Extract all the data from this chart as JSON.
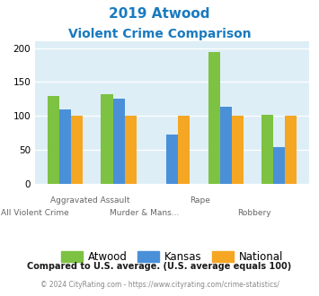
{
  "title_line1": "2019 Atwood",
  "title_line2": "Violent Crime Comparison",
  "title_color": "#1a7abf",
  "categories": [
    "All Violent Crime",
    "Aggravated Assault",
    "Murder & Mans...",
    "Rape",
    "Robbery"
  ],
  "atwood": [
    130,
    132,
    0,
    195,
    102
  ],
  "kansas": [
    109,
    125,
    72,
    114,
    54
  ],
  "national": [
    100,
    100,
    100,
    100,
    100
  ],
  "atwood_color": "#7dc242",
  "kansas_color": "#4a90d9",
  "national_color": "#f5a623",
  "bg_color": "#ddeef6",
  "ylim": [
    0,
    210
  ],
  "yticks": [
    0,
    50,
    100,
    150,
    200
  ],
  "footnote1": "Compared to U.S. average. (U.S. average equals 100)",
  "footnote2": "© 2024 CityRating.com - https://www.cityrating.com/crime-statistics/",
  "footnote1_color": "#1a1a1a",
  "footnote2_color": "#888888",
  "bar_width": 0.22
}
